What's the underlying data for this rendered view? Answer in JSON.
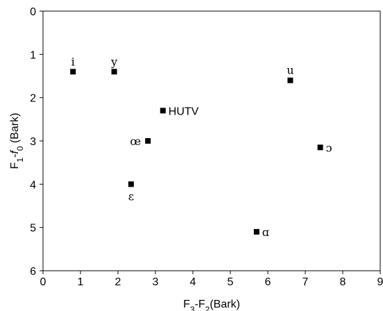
{
  "chart_data": {
    "type": "scatter",
    "xlabel": "F3-F2(Bark)",
    "xlabel_parts": {
      "pre": "F",
      "sub1": "3",
      "mid": "-F",
      "sub2": "2",
      "post": "(Bark)"
    },
    "ylabel": "F1-f0 (Bark)",
    "ylabel_parts": {
      "pre": "F",
      "sub1": "1",
      "mid": "-",
      "italic": "f",
      "sub2": "0",
      "post": " (Bark)"
    },
    "xlim": [
      0,
      9
    ],
    "ylim": [
      0,
      6
    ],
    "y_inverted": true,
    "x_ticks": [
      "0",
      "1",
      "2",
      "3",
      "4",
      "5",
      "6",
      "7",
      "8",
      "9"
    ],
    "y_ticks": [
      "0",
      "1",
      "2",
      "3",
      "4",
      "5",
      "6"
    ],
    "grid": false,
    "marker": "square",
    "marker_color": "#000000",
    "points": [
      {
        "label": "i",
        "x": 0.8,
        "y": 1.4,
        "label_pos": "above"
      },
      {
        "label": "y",
        "x": 1.9,
        "y": 1.4,
        "label_pos": "above"
      },
      {
        "label": "u",
        "x": 6.6,
        "y": 1.6,
        "label_pos": "above"
      },
      {
        "label": "HUTV",
        "x": 3.2,
        "y": 2.3,
        "label_pos": "right"
      },
      {
        "label": "œ",
        "x": 2.8,
        "y": 3.0,
        "label_pos": "left"
      },
      {
        "label": "ɔ",
        "x": 7.4,
        "y": 3.15,
        "label_pos": "right"
      },
      {
        "label": "ɛ",
        "x": 2.35,
        "y": 4.0,
        "label_pos": "below"
      },
      {
        "label": "ɑ",
        "x": 5.7,
        "y": 5.1,
        "label_pos": "right"
      }
    ]
  }
}
